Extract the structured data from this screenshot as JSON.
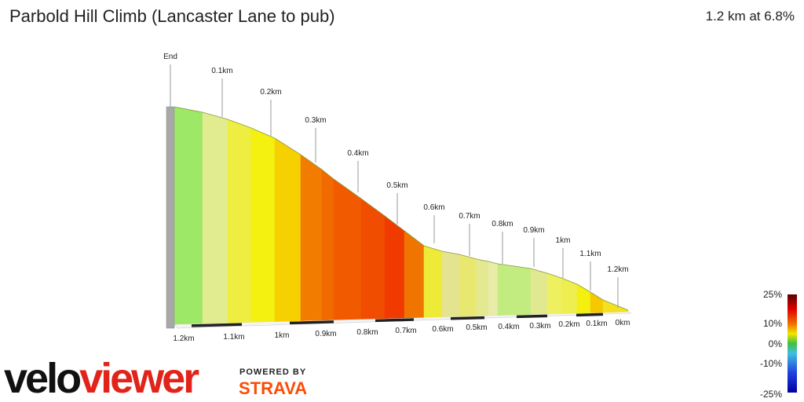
{
  "header": {
    "title": "Parbold Hill Climb (Lancaster Lane to pub)",
    "summary": "1.2 km at 6.8%"
  },
  "profile": {
    "top_labels": [
      "End",
      "0.1km",
      "0.2km",
      "0.3km",
      "0.4km",
      "0.5km",
      "0.6km",
      "0.7km",
      "0.8km",
      "0.9km",
      "1km",
      "1.1km",
      "1.2km"
    ],
    "bottom_labels": [
      "1.2km",
      "1.1km",
      "1km",
      "0.9km",
      "0.8km",
      "0.7km",
      "0.6km",
      "0.5km",
      "0.4km",
      "0.3km",
      "0.2km",
      "0.1km",
      "0km"
    ]
  },
  "legend": {
    "ticks": [
      "25%",
      "10%",
      "0%",
      "-10%",
      "-25%"
    ]
  },
  "branding": {
    "logo_left": "velo",
    "logo_right": "viewer",
    "powered_by": "POWERED BY",
    "strava": "STRAVA"
  }
}
